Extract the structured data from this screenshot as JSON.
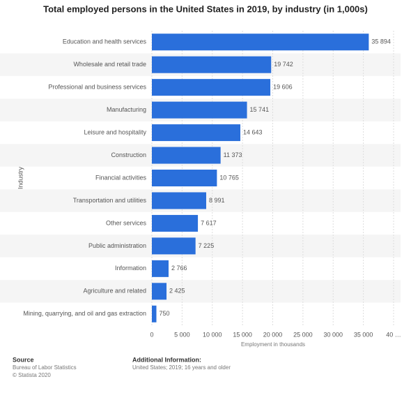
{
  "chart_data": {
    "type": "hbar",
    "title": "Total employed persons in the United States in 2019, by industry (in 1,000s)",
    "x_label": "Employment in thousands",
    "y_label": "Industry",
    "categories": [
      "Education and health services",
      "Wholesale and retail trade",
      "Professional and business services",
      "Manufacturing",
      "Leisure and hospitality",
      "Construction",
      "Financial activities",
      "Transportation and utilities",
      "Other services",
      "Public administration",
      "Information",
      "Agriculture and related",
      "Mining, quarrying, and oil and gas extraction"
    ],
    "values": [
      35894,
      19742,
      19606,
      15741,
      14643,
      11373,
      10765,
      8991,
      7617,
      7225,
      2766,
      2425,
      750
    ],
    "value_labels": [
      "35 894",
      "19 742",
      "19 606",
      "15 741",
      "14 643",
      "11 373",
      "10 765",
      "8 991",
      "7 617",
      "7 225",
      "2 766",
      "2 425",
      "750"
    ],
    "color": "#2a6fdb",
    "xlim": [
      0,
      40000
    ],
    "xticks": [
      0,
      {
        "value": 5000,
        "label": "5 000"
      },
      {
        "value": 10000,
        "label": "10 000"
      },
      {
        "value": 15000,
        "label": "15 000"
      },
      {
        "value": 20000,
        "label": "20 000"
      },
      {
        "value": 25000,
        "label": "25 000"
      },
      {
        "value": 30000,
        "label": "30 000"
      },
      {
        "value": 35000,
        "label": "35 000"
      },
      {
        "value": 40000,
        "label": "40 …"
      }
    ],
    "grid": true,
    "source": {
      "heading": "Source",
      "lines": [
        "Bureau of Labor Statistics",
        "© Statista 2020"
      ]
    },
    "additional_info": {
      "heading": "Additional Information:",
      "lines": [
        "United States; 2019; 16 years and older"
      ]
    }
  }
}
